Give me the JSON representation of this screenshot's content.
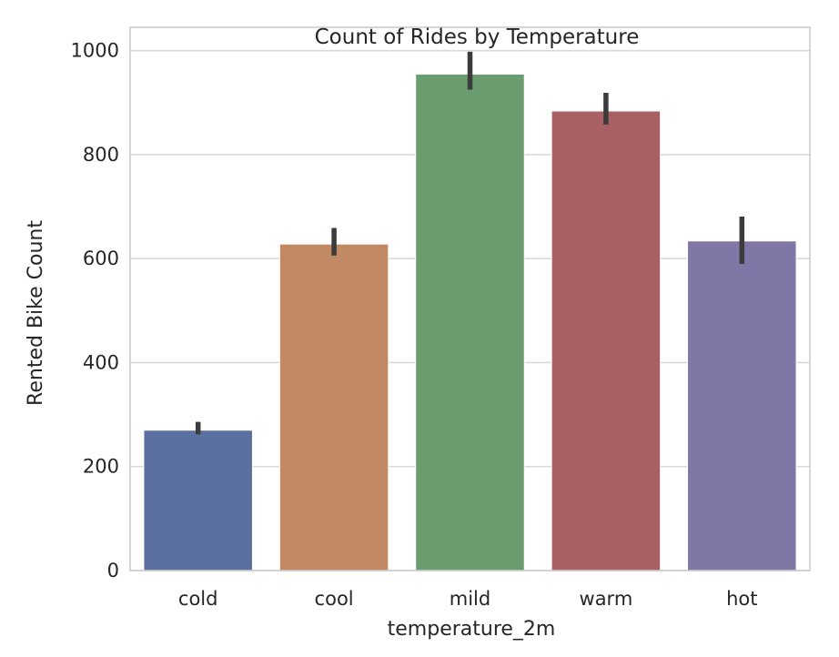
{
  "chart_data": {
    "type": "bar",
    "title": "Count of Rides by Temperature",
    "xlabel": "temperature_2m",
    "ylabel": "Rented Bike Count",
    "categories": [
      "cold",
      "cool",
      "mild",
      "warm",
      "hot"
    ],
    "values": [
      270,
      628,
      955,
      884,
      634
    ],
    "error_bars": [
      [
        262,
        286
      ],
      [
        606,
        659
      ],
      [
        925,
        998
      ],
      [
        858,
        919
      ],
      [
        590,
        681
      ]
    ],
    "colors": [
      "#5b6fa0",
      "#c28a64",
      "#6b9c70",
      "#a86062",
      "#8177a6"
    ],
    "ylim": [
      0,
      1045
    ],
    "yticks": [
      0,
      200,
      400,
      600,
      800,
      1000
    ],
    "grid": true,
    "legend": false
  }
}
